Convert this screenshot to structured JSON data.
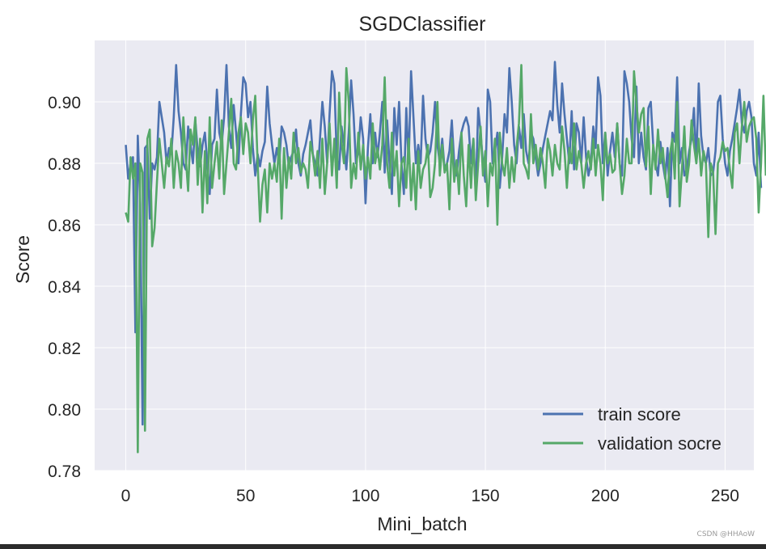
{
  "chart_data": {
    "type": "line",
    "title": "SGDClassifier",
    "xlabel": "Mini_batch",
    "ylabel": "Score",
    "xlim": [
      -13,
      262
    ],
    "ylim": [
      0.78,
      0.92
    ],
    "xticks": [
      0,
      50,
      100,
      150,
      200,
      250
    ],
    "xtick_labels": [
      "0",
      "50",
      "100",
      "150",
      "200",
      "250"
    ],
    "yticks": [
      0.78,
      0.8,
      0.82,
      0.84,
      0.86,
      0.88,
      0.9
    ],
    "ytick_labels": [
      "0.78",
      "0.80",
      "0.82",
      "0.84",
      "0.86",
      "0.88",
      "0.90"
    ],
    "grid": true,
    "legend_position": "lower-right",
    "series": [
      {
        "name": "train score",
        "color": "#4c72b0",
        "x_start": 0,
        "x_step": 1,
        "values": [
          0.886,
          0.875,
          0.88,
          0.882,
          0.825,
          0.889,
          0.867,
          0.795,
          0.885,
          0.886,
          0.862,
          0.88,
          0.878,
          0.882,
          0.9,
          0.895,
          0.89,
          0.88,
          0.885,
          0.883,
          0.895,
          0.912,
          0.897,
          0.89,
          0.88,
          0.878,
          0.892,
          0.886,
          0.88,
          0.894,
          0.884,
          0.879,
          0.886,
          0.89,
          0.88,
          0.87,
          0.886,
          0.888,
          0.904,
          0.89,
          0.886,
          0.895,
          0.912,
          0.892,
          0.885,
          0.899,
          0.89,
          0.88,
          0.896,
          0.908,
          0.906,
          0.895,
          0.9,
          0.885,
          0.876,
          0.883,
          0.879,
          0.884,
          0.887,
          0.905,
          0.893,
          0.886,
          0.88,
          0.885,
          0.88,
          0.892,
          0.89,
          0.886,
          0.879,
          0.882,
          0.884,
          0.891,
          0.88,
          0.876,
          0.883,
          0.886,
          0.89,
          0.894,
          0.883,
          0.88,
          0.876,
          0.888,
          0.9,
          0.892,
          0.88,
          0.896,
          0.91,
          0.906,
          0.882,
          0.878,
          0.892,
          0.886,
          0.878,
          0.89,
          0.907,
          0.896,
          0.88,
          0.884,
          0.895,
          0.888,
          0.867,
          0.885,
          0.896,
          0.88,
          0.89,
          0.882,
          0.89,
          0.9,
          0.877,
          0.894,
          0.88,
          0.87,
          0.898,
          0.886,
          0.9,
          0.88,
          0.87,
          0.898,
          0.88,
          0.91,
          0.895,
          0.88,
          0.886,
          0.88,
          0.902,
          0.888,
          0.882,
          0.884,
          0.89,
          0.9,
          0.886,
          0.88,
          0.888,
          0.878,
          0.88,
          0.884,
          0.894,
          0.88,
          0.876,
          0.884,
          0.89,
          0.893,
          0.895,
          0.892,
          0.88,
          0.888,
          0.87,
          0.898,
          0.89,
          0.88,
          0.874,
          0.904,
          0.9,
          0.88,
          0.884,
          0.89,
          0.872,
          0.882,
          0.896,
          0.89,
          0.911,
          0.9,
          0.886,
          0.88,
          0.892,
          0.885,
          0.896,
          0.884,
          0.88,
          0.89,
          0.888,
          0.882,
          0.876,
          0.88,
          0.885,
          0.889,
          0.893,
          0.897,
          0.894,
          0.913,
          0.899,
          0.89,
          0.906,
          0.896,
          0.888,
          0.88,
          0.897,
          0.878,
          0.893,
          0.89,
          0.88,
          0.895,
          0.882,
          0.876,
          0.88,
          0.892,
          0.885,
          0.908,
          0.902,
          0.88,
          0.89,
          0.876,
          0.884,
          0.89,
          0.882,
          0.893,
          0.88,
          0.876,
          0.91,
          0.906,
          0.9,
          0.888,
          0.882,
          0.905,
          0.88,
          0.89,
          0.882,
          0.878,
          0.898,
          0.9,
          0.886,
          0.88,
          0.876,
          0.887,
          0.88,
          0.875,
          0.885,
          0.866,
          0.89,
          0.887,
          0.908,
          0.88,
          0.885,
          0.876,
          0.878,
          0.884,
          0.888,
          0.898,
          0.88,
          0.906,
          0.889,
          0.882,
          0.88,
          0.885,
          0.876,
          0.877,
          0.884,
          0.9,
          0.902,
          0.888,
          0.88,
          0.876,
          0.884,
          0.888,
          0.893,
          0.898,
          0.904,
          0.893,
          0.89,
          0.897,
          0.9,
          0.895,
          0.88,
          0.876,
          0.89,
          0.872
        ]
      },
      {
        "name": "validation socre",
        "color": "#55a868",
        "x_start": 0,
        "x_step": 1,
        "values": [
          0.864,
          0.861,
          0.882,
          0.875,
          0.88,
          0.786,
          0.88,
          0.877,
          0.793,
          0.888,
          0.891,
          0.853,
          0.859,
          0.874,
          0.888,
          0.88,
          0.872,
          0.882,
          0.879,
          0.888,
          0.872,
          0.884,
          0.88,
          0.872,
          0.895,
          0.882,
          0.871,
          0.891,
          0.886,
          0.895,
          0.873,
          0.888,
          0.864,
          0.884,
          0.867,
          0.895,
          0.872,
          0.88,
          0.887,
          0.875,
          0.894,
          0.87,
          0.88,
          0.89,
          0.901,
          0.88,
          0.878,
          0.89,
          0.895,
          0.883,
          0.893,
          0.89,
          0.88,
          0.894,
          0.902,
          0.88,
          0.861,
          0.873,
          0.878,
          0.864,
          0.88,
          0.875,
          0.88,
          0.874,
          0.888,
          0.862,
          0.885,
          0.872,
          0.882,
          0.875,
          0.89,
          0.88,
          0.885,
          0.877,
          0.88,
          0.878,
          0.872,
          0.887,
          0.883,
          0.876,
          0.884,
          0.872,
          0.888,
          0.87,
          0.88,
          0.893,
          0.876,
          0.888,
          0.872,
          0.903,
          0.887,
          0.88,
          0.911,
          0.9,
          0.872,
          0.88,
          0.875,
          0.89,
          0.878,
          0.886,
          0.875,
          0.882,
          0.875,
          0.893,
          0.88,
          0.885,
          0.878,
          0.886,
          0.908,
          0.88,
          0.872,
          0.89,
          0.876,
          0.884,
          0.866,
          0.88,
          0.882,
          0.872,
          0.888,
          0.868,
          0.88,
          0.865,
          0.884,
          0.872,
          0.878,
          0.88,
          0.886,
          0.869,
          0.872,
          0.88,
          0.9,
          0.876,
          0.886,
          0.877,
          0.88,
          0.865,
          0.888,
          0.874,
          0.881,
          0.87,
          0.89,
          0.876,
          0.866,
          0.886,
          0.872,
          0.888,
          0.868,
          0.88,
          0.892,
          0.876,
          0.884,
          0.866,
          0.88,
          0.876,
          0.888,
          0.86,
          0.89,
          0.88,
          0.876,
          0.885,
          0.872,
          0.882,
          0.874,
          0.885,
          0.893,
          0.912,
          0.88,
          0.878,
          0.875,
          0.896,
          0.88,
          0.886,
          0.878,
          0.885,
          0.88,
          0.872,
          0.888,
          0.884,
          0.876,
          0.886,
          0.88,
          0.878,
          0.892,
          0.884,
          0.872,
          0.885,
          0.88,
          0.893,
          0.878,
          0.884,
          0.88,
          0.872,
          0.88,
          0.884,
          0.878,
          0.888,
          0.876,
          0.886,
          0.88,
          0.868,
          0.89,
          0.88,
          0.883,
          0.877,
          0.878,
          0.893,
          0.88,
          0.87,
          0.876,
          0.888,
          0.88,
          0.88,
          0.91,
          0.9,
          0.89,
          0.896,
          0.898,
          0.879,
          0.892,
          0.87,
          0.886,
          0.878,
          0.891,
          0.88,
          0.885,
          0.876,
          0.869,
          0.883,
          0.888,
          0.875,
          0.9,
          0.866,
          0.878,
          0.892,
          0.874,
          0.88,
          0.894,
          0.886,
          0.88,
          0.888,
          0.876,
          0.884,
          0.88,
          0.856,
          0.88,
          0.877,
          0.857,
          0.88,
          0.882,
          0.887,
          0.884,
          0.885,
          0.878,
          0.872,
          0.89,
          0.893,
          0.88,
          0.892,
          0.9,
          0.887,
          0.892,
          0.894,
          0.895,
          0.888,
          0.864,
          0.88,
          0.902,
          0.876
        ]
      }
    ]
  },
  "watermark": "CSDN @HHAoW"
}
